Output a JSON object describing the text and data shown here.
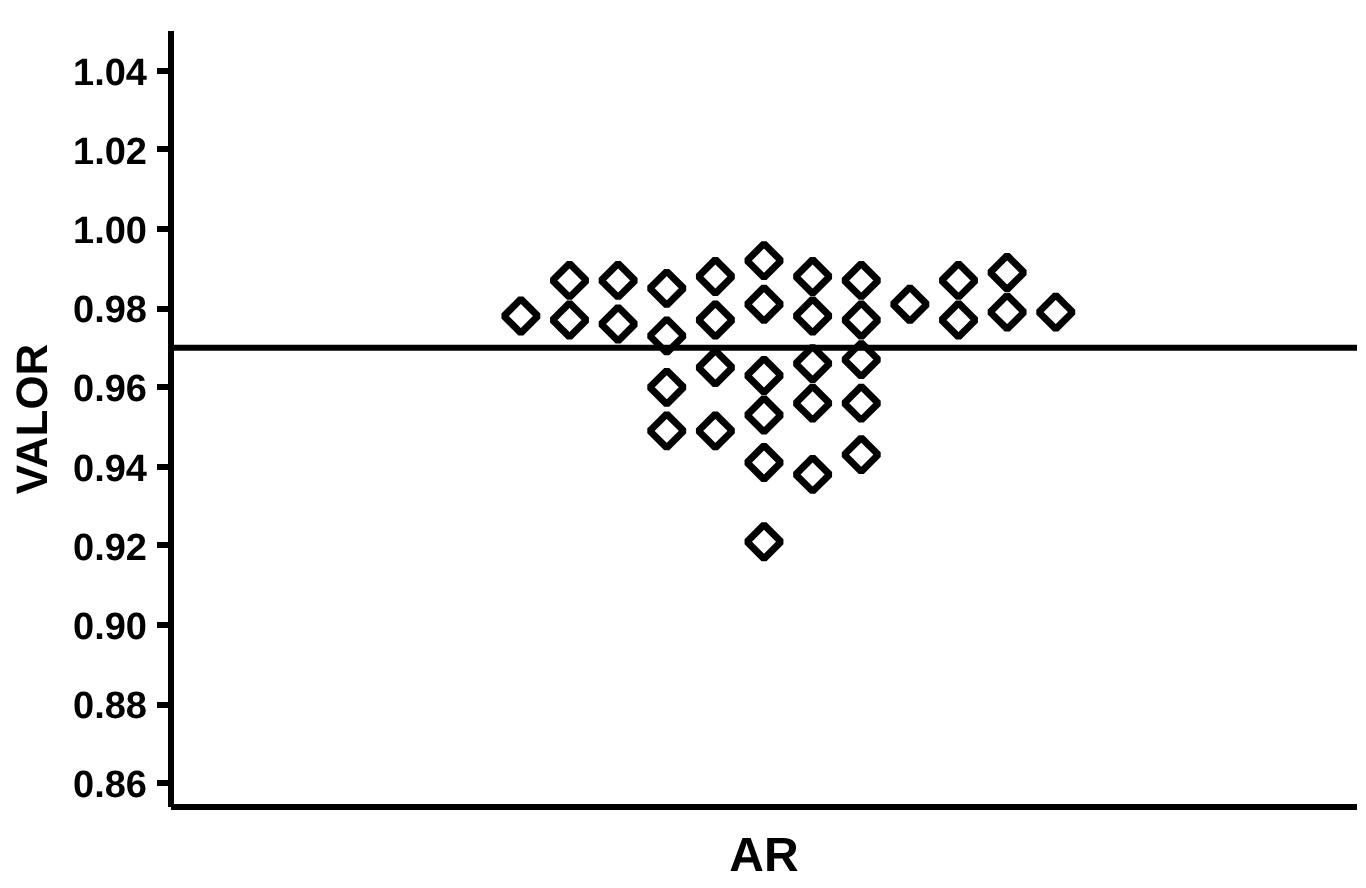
{
  "chart_data": {
    "type": "scatter",
    "ylabel": "VALOR",
    "categories": [
      "AR"
    ],
    "series": [
      {
        "color": "#000000",
        "x": [
          "AR",
          "AR",
          "AR",
          "AR",
          "AR",
          "AR",
          "AR",
          "AR",
          "AR",
          "AR",
          "AR",
          "AR",
          "AR",
          "AR",
          "AR",
          "AR",
          "AR",
          "AR",
          "AR",
          "AR",
          "AR",
          "AR",
          "AR",
          "AR",
          "AR",
          "AR",
          "AR",
          "AR",
          "AR",
          "AR",
          "AR",
          "AR",
          "AR",
          "AR",
          "AR"
        ],
        "values": [
          0.992,
          0.988,
          0.988,
          0.987,
          0.985,
          0.981,
          0.981,
          0.987,
          0.987,
          0.987,
          0.989,
          0.979,
          0.978,
          0.977,
          0.977,
          0.976,
          0.977,
          0.977,
          0.978,
          0.979,
          0.973,
          0.963,
          0.966,
          0.965,
          0.967,
          0.96,
          0.956,
          0.953,
          0.956,
          0.949,
          0.949,
          0.941,
          0.938,
          0.943,
          0.921
        ]
      }
    ],
    "ylim": [
      0.854,
      1.05
    ],
    "yticks": [
      {
        "value": 0.86,
        "label": "0.86"
      },
      {
        "value": 0.88,
        "label": "0.88"
      },
      {
        "value": 0.9,
        "label": "0.90"
      },
      {
        "value": 0.92,
        "label": "0.92"
      },
      {
        "value": 0.94,
        "label": "0.94"
      },
      {
        "value": 0.96,
        "label": "0.96"
      },
      {
        "value": 0.98,
        "label": "0.98"
      },
      {
        "value": 1.0,
        "label": "1.00"
      },
      {
        "value": 1.02,
        "label": "1.02"
      },
      {
        "value": 1.04,
        "label": "1.04"
      }
    ],
    "ref_lines": [
      {
        "axis": "y",
        "value": 0.97,
        "label": null,
        "color": "#000000"
      }
    ],
    "marker": "diamond",
    "grid": false,
    "legend": false
  }
}
